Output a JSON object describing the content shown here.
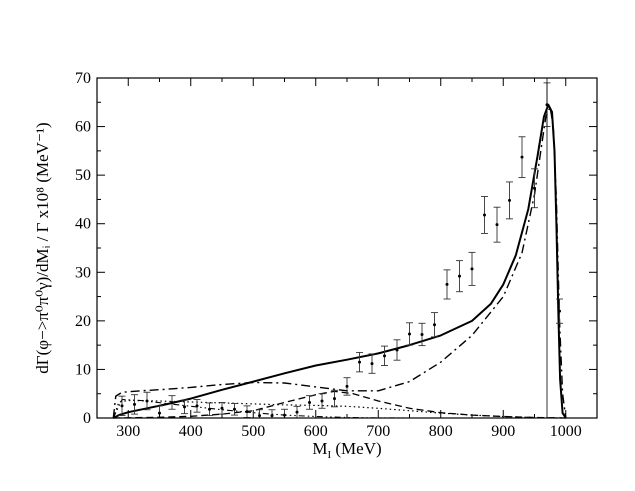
{
  "chart_data": {
    "type": "line",
    "title": "",
    "xlabel": "M",
    "xlabel_sub": "I",
    "xlabel_unit": " (MeV)",
    "ylabel": "dΓ(φ−>π⁰π⁰γ)/dMᵢ / Γ  x10⁸ (MeV⁻¹)",
    "xlim": [
      250,
      1050
    ],
    "ylim": [
      0,
      70
    ],
    "xticks": [
      300,
      400,
      500,
      600,
      700,
      800,
      900,
      1000
    ],
    "yticks": [
      0,
      10,
      20,
      30,
      40,
      50,
      60,
      70
    ],
    "vline": 970,
    "series": [
      {
        "name": "total",
        "style": "solid",
        "x": [
          276,
          285,
          300,
          330,
          360,
          400,
          450,
          500,
          550,
          600,
          650,
          700,
          750,
          800,
          850,
          880,
          900,
          920,
          940,
          955,
          965,
          972,
          978,
          982,
          985,
          988,
          991,
          995,
          1000
        ],
        "y": [
          0,
          0.6,
          1.2,
          2.0,
          2.8,
          4.0,
          5.8,
          7.5,
          9.2,
          10.8,
          12.0,
          13.3,
          15.0,
          17.0,
          20.0,
          23.5,
          27.5,
          33.5,
          43.0,
          54.0,
          62.0,
          64.5,
          63.0,
          55.0,
          40.0,
          22.0,
          8.0,
          1.0,
          0
        ]
      },
      {
        "name": "dash-dot",
        "style": "dashdot",
        "x": [
          276,
          280,
          290,
          320,
          360,
          400,
          450,
          500,
          550,
          600,
          650,
          700,
          750,
          800,
          850,
          900,
          930,
          950,
          960,
          968,
          975,
          980,
          985,
          990,
          995,
          1000
        ],
        "y": [
          0,
          4.5,
          5.3,
          5.6,
          5.9,
          6.3,
          6.9,
          7.3,
          7.2,
          6.4,
          5.6,
          5.6,
          7.5,
          11.5,
          17.0,
          25.0,
          34.0,
          46.0,
          55.0,
          62.0,
          64.0,
          60.0,
          45.0,
          20.0,
          5.0,
          0
        ]
      },
      {
        "name": "dashed",
        "style": "dashed",
        "x": [
          276,
          300,
          350,
          400,
          450,
          500,
          550,
          600,
          630,
          660,
          700,
          750,
          800,
          850,
          900,
          950,
          1000
        ],
        "y": [
          0,
          0.05,
          0.15,
          0.35,
          0.8,
          1.5,
          3.2,
          4.8,
          5.5,
          5.0,
          3.5,
          2.0,
          1.1,
          0.6,
          0.3,
          0.1,
          0
        ]
      },
      {
        "name": "dotted",
        "style": "dotted",
        "x": [
          276,
          285,
          300,
          350,
          400,
          450,
          500,
          550,
          600,
          650,
          700,
          750,
          800,
          850,
          900,
          950,
          985,
          1000
        ],
        "y": [
          0,
          3.3,
          3.6,
          3.5,
          3.3,
          3.1,
          2.9,
          2.7,
          2.6,
          2.4,
          2.0,
          1.5,
          1.0,
          0.6,
          0.3,
          0.1,
          0.0,
          0
        ]
      },
      {
        "name": "dot-dot-dash",
        "style": "dotdotdash",
        "x": [
          276,
          290,
          320,
          360,
          400,
          450,
          500,
          550,
          600,
          650,
          700,
          750
        ],
        "y": [
          0,
          3.8,
          3.6,
          3.0,
          2.4,
          1.7,
          1.1,
          0.6,
          0.3,
          0.1,
          0.02,
          0
        ]
      }
    ],
    "data_points": {
      "name": "data",
      "x": [
        290,
        310,
        330,
        350,
        370,
        390,
        410,
        430,
        450,
        470,
        490,
        510,
        530,
        550,
        570,
        590,
        610,
        630,
        650,
        670,
        690,
        710,
        730,
        750,
        770,
        790,
        810,
        830,
        850,
        870,
        890,
        910,
        930,
        950,
        970,
        990
      ],
      "y": [
        2.5,
        2.8,
        3.5,
        1.0,
        3.2,
        2.3,
        2.5,
        1.8,
        2.0,
        1.8,
        1.3,
        0.5,
        0.5,
        0.6,
        1.2,
        3.2,
        3.5,
        4.0,
        6.5,
        11.5,
        11.2,
        12.8,
        14.0,
        17.3,
        17.2,
        19.2,
        27.5,
        29.2,
        30.7,
        41.8,
        39.8,
        44.8,
        53.7,
        47.3,
        64.5,
        22.0
      ],
      "err": [
        2.0,
        2.0,
        1.8,
        1.5,
        1.4,
        1.4,
        1.3,
        1.3,
        1.2,
        1.2,
        1.2,
        1.2,
        1.2,
        1.2,
        1.2,
        1.4,
        1.5,
        1.7,
        1.8,
        2.0,
        2.0,
        2.0,
        2.1,
        2.3,
        2.3,
        2.5,
        3.0,
        3.2,
        3.4,
        3.8,
        3.6,
        3.8,
        4.2,
        4.0,
        4.5,
        2.5
      ]
    }
  }
}
